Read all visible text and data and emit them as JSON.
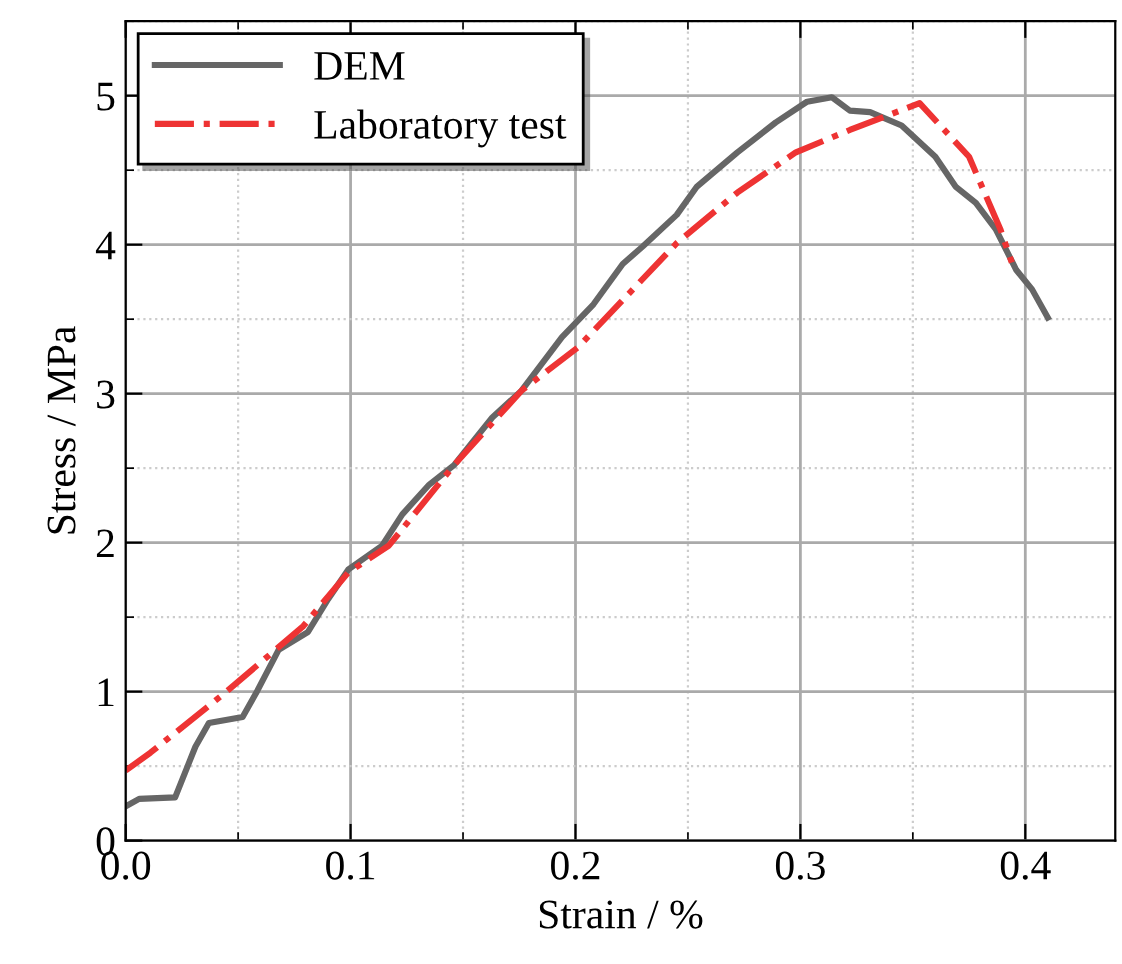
{
  "chart_data": {
    "type": "line",
    "xlabel": "Strain / %",
    "ylabel": "Stress / MPa",
    "xlim": [
      0,
      0.44
    ],
    "ylim": [
      0,
      5.5
    ],
    "xticks": [
      {
        "value": 0,
        "label": "0.0"
      },
      0.1,
      0.2,
      0.3,
      0.4
    ],
    "yticks": [
      0,
      1,
      2,
      3,
      4,
      5
    ],
    "grid": true,
    "legend": "top left",
    "series": [
      {
        "name": "DEM",
        "color": "#666666",
        "line_style": "solid",
        "x": [
          0,
          0.006,
          0.022,
          0.031,
          0.037,
          0.052,
          0.058,
          0.068,
          0.081,
          0.09,
          0.099,
          0.114,
          0.123,
          0.135,
          0.146,
          0.163,
          0.176,
          0.194,
          0.208,
          0.221,
          0.23,
          0.245,
          0.254,
          0.272,
          0.289,
          0.303,
          0.314,
          0.322,
          0.331,
          0.345,
          0.36,
          0.369,
          0.378,
          0.387,
          0.396,
          0.403,
          0.41
        ],
        "values": [
          0.23,
          0.28,
          0.29,
          0.63,
          0.79,
          0.83,
          0.99,
          1.28,
          1.4,
          1.62,
          1.82,
          1.98,
          2.19,
          2.39,
          2.52,
          2.84,
          3.02,
          3.38,
          3.6,
          3.87,
          3.99,
          4.2,
          4.39,
          4.62,
          4.82,
          4.96,
          4.99,
          4.9,
          4.89,
          4.8,
          4.59,
          4.39,
          4.28,
          4.1,
          3.83,
          3.7,
          3.51
        ]
      },
      {
        "name": "Laboratory test",
        "color": "#ee3333",
        "line_style": "dashdot",
        "x": [
          0,
          0.011,
          0.044,
          0.079,
          0.099,
          0.117,
          0.146,
          0.176,
          0.201,
          0.245,
          0.272,
          0.298,
          0.322,
          0.353,
          0.375,
          0.389,
          0.394
        ],
        "values": [
          0.47,
          0.59,
          0.99,
          1.44,
          1.8,
          1.98,
          2.52,
          3.02,
          3.31,
          4.01,
          4.35,
          4.62,
          4.77,
          4.95,
          4.59,
          4.1,
          3.88
        ]
      }
    ]
  }
}
